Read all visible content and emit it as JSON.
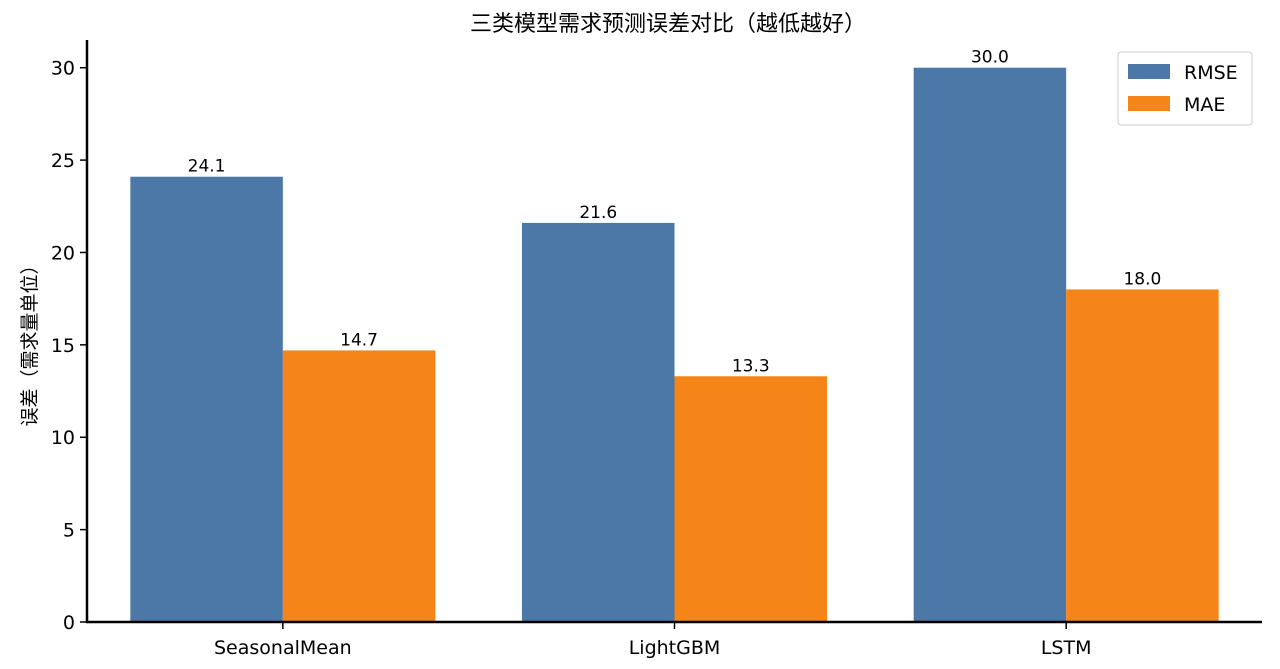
{
  "chart_data": {
    "type": "bar",
    "title": "三类模型需求预测误差对比（越低越好）",
    "xlabel": "",
    "ylabel": "误差（需求量单位）",
    "categories": [
      "SeasonalMean",
      "LightGBM",
      "LSTM"
    ],
    "series": [
      {
        "name": "RMSE",
        "color": "#4c78a8",
        "values": [
          24.1,
          21.6,
          30.0
        ],
        "labels": [
          "24.1",
          "21.6",
          "30.0"
        ]
      },
      {
        "name": "MAE",
        "color": "#f58518",
        "values": [
          14.7,
          13.3,
          18.0
        ],
        "labels": [
          "14.7",
          "13.3",
          "18.0"
        ]
      }
    ],
    "ylim": [
      0,
      31.5
    ],
    "yticks": [
      0,
      5,
      10,
      15,
      20,
      25,
      30
    ],
    "grid": false,
    "legend_position": "top-right"
  }
}
